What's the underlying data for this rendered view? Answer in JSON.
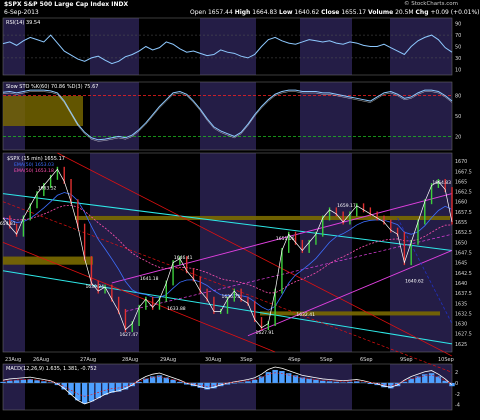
{
  "header": {
    "symbol": "$SPX",
    "name": "S&P 500 Large Cap Index",
    "exchange": "INDX",
    "date": "6-Sep-2013",
    "open_label": "Open",
    "open": "1657.44",
    "high_label": "High",
    "high": "1664.83",
    "low_label": "Low",
    "low": "1640.62",
    "close_label": "Close",
    "close": "1655.17",
    "volume_label": "Volume",
    "volume": "20.5M",
    "chg_label": "Chg",
    "chg": "+0.09 (+0.01%)",
    "watermark": "© StockCharts.com"
  },
  "colors": {
    "background": "#000000",
    "panel_band": "#241d46",
    "price": "#ffffff",
    "ema_fast": "#3d6fff",
    "ema_slow": "#ff4fb0",
    "channel_magenta": "#e040e0",
    "channel_red": "#e01010",
    "channel_cyan": "#2ee8e8",
    "support_yellow": "#7a6a00",
    "indicator_line": "#8ec9ff",
    "overbought_red": "#ff2020",
    "oversold_green": "#20c020",
    "macd_hist": "#4ea0ff"
  },
  "chart_data": {
    "type": "line",
    "price_panel": {
      "legend": [
        "$SPX (15 min) 1655.17",
        "EMA(50) 1653.03",
        "EMA(50) 1653.18"
      ],
      "y_ticks": [
        1625,
        1627.5,
        1630,
        1632.5,
        1635,
        1637.5,
        1640,
        1642.5,
        1645,
        1647.5,
        1650,
        1652.5,
        1655,
        1657.5,
        1660,
        1662.5,
        1665,
        1667.5,
        1670
      ],
      "ylim": [
        1623,
        1672
      ],
      "x_labels": [
        "23Aug",
        "26Aug",
        "27Aug",
        "28Aug",
        "29Aug",
        "30Aug",
        "3Sep",
        "4Sep",
        "5Sep",
        "6Sep",
        "9Sep",
        "10Sep"
      ],
      "price": [
        [
          0,
          1656
        ],
        [
          1,
          1654
        ],
        [
          2,
          1652
        ],
        [
          3,
          1656
        ],
        [
          4,
          1659
        ],
        [
          5,
          1662
        ],
        [
          6,
          1664
        ],
        [
          7,
          1666
        ],
        [
          8,
          1668
        ],
        [
          9,
          1665
        ],
        [
          10,
          1660
        ],
        [
          11,
          1654
        ],
        [
          12,
          1646
        ],
        [
          13,
          1640
        ],
        [
          14,
          1638
        ],
        [
          15,
          1639
        ],
        [
          16,
          1636
        ],
        [
          17,
          1633
        ],
        [
          18,
          1628.5
        ],
        [
          19,
          1630
        ],
        [
          20,
          1634
        ],
        [
          21,
          1636
        ],
        [
          22,
          1634
        ],
        [
          23,
          1636
        ],
        [
          24,
          1640
        ],
        [
          25,
          1645
        ],
        [
          26,
          1646
        ],
        [
          27,
          1643
        ],
        [
          28,
          1641
        ],
        [
          29,
          1638
        ],
        [
          30,
          1636
        ],
        [
          31,
          1633
        ],
        [
          32,
          1633
        ],
        [
          33,
          1636
        ],
        [
          34,
          1638
        ],
        [
          35,
          1636
        ],
        [
          36,
          1635
        ],
        [
          37,
          1631
        ],
        [
          38,
          1629
        ],
        [
          39,
          1630
        ],
        [
          40,
          1638
        ],
        [
          41,
          1648
        ],
        [
          42,
          1652
        ],
        [
          43,
          1650
        ],
        [
          44,
          1648
        ],
        [
          45,
          1650
        ],
        [
          46,
          1652
        ],
        [
          47,
          1656
        ],
        [
          48,
          1658
        ],
        [
          49,
          1657
        ],
        [
          50,
          1655
        ],
        [
          51,
          1657
        ],
        [
          52,
          1659
        ],
        [
          53,
          1658
        ],
        [
          54,
          1657
        ],
        [
          55,
          1656
        ],
        [
          56,
          1655
        ],
        [
          57,
          1653
        ],
        [
          58,
          1652
        ],
        [
          59,
          1645
        ],
        [
          60,
          1650
        ],
        [
          61,
          1655
        ],
        [
          62,
          1660
        ],
        [
          63,
          1664
        ],
        [
          64,
          1665
        ],
        [
          65,
          1663
        ],
        [
          66,
          1655
        ]
      ],
      "annotations": [
        {
          "x": 0,
          "y": 1654.81,
          "text": "1654.81"
        },
        {
          "x": 6,
          "y": 1663.5,
          "text": "1663.52"
        },
        {
          "x": 13,
          "y": 1639.24,
          "text": "1639.24"
        },
        {
          "x": 18,
          "y": 1627.47,
          "text": "1627.47"
        },
        {
          "x": 21,
          "y": 1641.18,
          "text": "1641.18"
        },
        {
          "x": 26,
          "y": 1646.41,
          "text": "1646.41"
        },
        {
          "x": 25,
          "y": 1633.88,
          "text": "1633.88"
        },
        {
          "x": 33,
          "y": 1636.75,
          "text": "1636.75"
        },
        {
          "x": 38,
          "y": 1627.91,
          "text": "1627.91"
        },
        {
          "x": 41,
          "y": 1651.06,
          "text": "1651.06"
        },
        {
          "x": 44,
          "y": 1632.41,
          "text": "1632.41"
        },
        {
          "x": 50,
          "y": 1659.17,
          "text": "1659.17"
        },
        {
          "x": 60,
          "y": 1640.62,
          "text": "1640.62"
        },
        {
          "x": 64,
          "y": 1664.83,
          "text": "1664.83"
        }
      ]
    },
    "rsi_panel": {
      "legend": "RSI(14) 39.54",
      "y_ticks": [
        10,
        30,
        50,
        70,
        90
      ],
      "ylim": [
        0,
        100
      ],
      "values": [
        55,
        58,
        52,
        60,
        66,
        62,
        58,
        70,
        56,
        42,
        35,
        28,
        24,
        30,
        33,
        26,
        20,
        24,
        32,
        36,
        42,
        50,
        44,
        48,
        58,
        54,
        46,
        40,
        42,
        38,
        34,
        36,
        44,
        40,
        38,
        33,
        30,
        36,
        50,
        62,
        66,
        60,
        56,
        54,
        58,
        62,
        60,
        58,
        60,
        56,
        54,
        58,
        56,
        52,
        50,
        50,
        54,
        48,
        42,
        36,
        50,
        60,
        66,
        70,
        62,
        48,
        40
      ]
    },
    "sto_panel": {
      "legend": [
        "Slow STO %K(60) 70.86",
        "%D(3) 75.67"
      ],
      "y_ticks": [
        20,
        50,
        80
      ],
      "ylim": [
        0,
        100
      ],
      "overbought": 80,
      "oversold": 20,
      "values": [
        85,
        86,
        84,
        86,
        88,
        88,
        88,
        87,
        84,
        72,
        55,
        38,
        26,
        18,
        15,
        16,
        18,
        20,
        18,
        22,
        30,
        40,
        52,
        64,
        74,
        84,
        86,
        82,
        72,
        60,
        46,
        34,
        28,
        24,
        20,
        26,
        38,
        52,
        64,
        74,
        82,
        86,
        88,
        88,
        86,
        86,
        86,
        84,
        84,
        82,
        80,
        78,
        76,
        74,
        72,
        78,
        84,
        86,
        82,
        76,
        78,
        84,
        88,
        88,
        86,
        80,
        72
      ]
    },
    "macd_panel": {
      "legend": "MACD(12,26,9) 1.635, 1.381, -0.752",
      "y_ticks": [
        -4,
        -2,
        0,
        2
      ],
      "ylim": [
        -5,
        3.5
      ],
      "histogram": [
        0.2,
        0.4,
        0.5,
        0.6,
        0.7,
        0.5,
        0.3,
        0.1,
        -0.4,
        -1.2,
        -2.2,
        -3.2,
        -3.8,
        -3.4,
        -2.8,
        -2.2,
        -1.8,
        -1.6,
        -1.2,
        -0.6,
        0.2,
        0.8,
        1.2,
        1.4,
        1.0,
        0.6,
        0.2,
        -0.3,
        -0.6,
        -0.9,
        -1.2,
        -1.0,
        -0.6,
        -0.3,
        -0.1,
        0.1,
        0.3,
        0.6,
        1.2,
        2.0,
        2.4,
        2.2,
        1.8,
        1.4,
        1.0,
        0.8,
        0.6,
        0.4,
        0.3,
        0.2,
        0.1,
        0.2,
        0.3,
        0.1,
        -0.2,
        -0.4,
        -0.8,
        -1.0,
        -0.6,
        0.2,
        0.8,
        1.2,
        1.6,
        1.8,
        1.2,
        0.4,
        -0.6
      ]
    }
  }
}
